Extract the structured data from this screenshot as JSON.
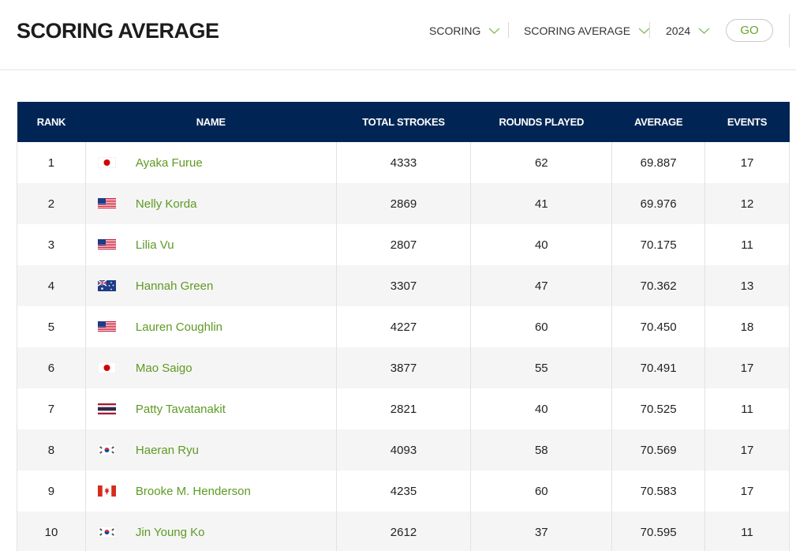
{
  "page": {
    "title": "SCORING AVERAGE"
  },
  "filters": [
    {
      "label": "SCORING"
    },
    {
      "label": "SCORING AVERAGE"
    },
    {
      "label": "2024"
    }
  ],
  "go_label": "GO",
  "colors": {
    "header_bg": "#002554",
    "link": "#5e9a24",
    "go_text": "#6aa42c",
    "chevron": "#8cc063"
  },
  "table": {
    "columns": [
      "RANK",
      "NAME",
      "TOTAL STROKES",
      "ROUNDS PLAYED",
      "AVERAGE",
      "EVENTS"
    ],
    "rows": [
      {
        "rank": "1",
        "flag": "japan-flag-icon",
        "name": "Ayaka Furue",
        "strokes": "4333",
        "rounds": "62",
        "average": "69.887",
        "events": "17"
      },
      {
        "rank": "2",
        "flag": "usa-flag-icon",
        "name": "Nelly Korda",
        "strokes": "2869",
        "rounds": "41",
        "average": "69.976",
        "events": "12"
      },
      {
        "rank": "3",
        "flag": "usa-flag-icon",
        "name": "Lilia Vu",
        "strokes": "2807",
        "rounds": "40",
        "average": "70.175",
        "events": "11"
      },
      {
        "rank": "4",
        "flag": "australia-flag-icon",
        "name": "Hannah Green",
        "strokes": "3307",
        "rounds": "47",
        "average": "70.362",
        "events": "13"
      },
      {
        "rank": "5",
        "flag": "usa-flag-icon",
        "name": "Lauren Coughlin",
        "strokes": "4227",
        "rounds": "60",
        "average": "70.450",
        "events": "18"
      },
      {
        "rank": "6",
        "flag": "japan-flag-icon",
        "name": "Mao Saigo",
        "strokes": "3877",
        "rounds": "55",
        "average": "70.491",
        "events": "17"
      },
      {
        "rank": "7",
        "flag": "thailand-flag-icon",
        "name": "Patty Tavatanakit",
        "strokes": "2821",
        "rounds": "40",
        "average": "70.525",
        "events": "11"
      },
      {
        "rank": "8",
        "flag": "korea-flag-icon",
        "name": "Haeran Ryu",
        "strokes": "4093",
        "rounds": "58",
        "average": "70.569",
        "events": "17"
      },
      {
        "rank": "9",
        "flag": "canada-flag-icon",
        "name": "Brooke M. Henderson",
        "strokes": "4235",
        "rounds": "60",
        "average": "70.583",
        "events": "17"
      },
      {
        "rank": "10",
        "flag": "korea-flag-icon",
        "name": "Jin Young Ko",
        "strokes": "2612",
        "rounds": "37",
        "average": "70.595",
        "events": "11"
      }
    ]
  }
}
